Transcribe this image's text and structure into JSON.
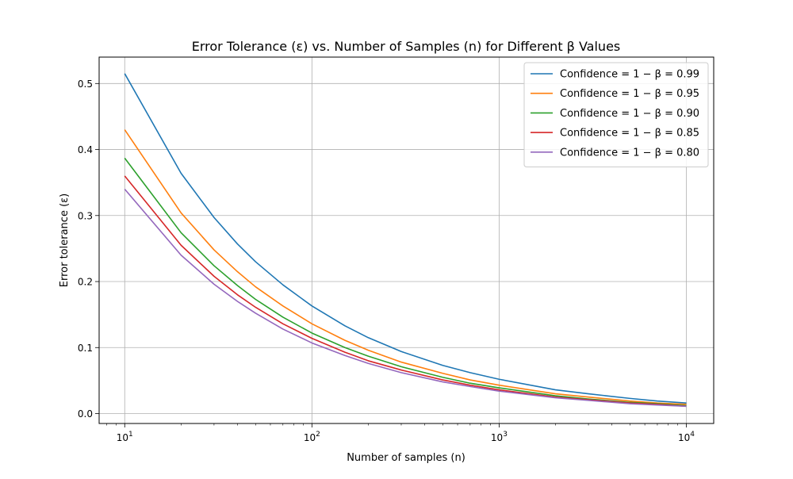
{
  "chart_data": {
    "type": "line",
    "title": "Error Tolerance (ε) vs. Number of Samples (n) for Different β Values",
    "xlabel": "Number of samples (n)",
    "ylabel": "Error tolerance (ε)",
    "x_scale": "log",
    "xlim": [
      7.3,
      14000
    ],
    "ylim": [
      -0.015,
      0.54
    ],
    "grid": true,
    "legend_position": "top-right",
    "x_ticks": [
      {
        "value": 10,
        "base": "10",
        "exp": "1"
      },
      {
        "value": 100,
        "base": "10",
        "exp": "2"
      },
      {
        "value": 1000,
        "base": "10",
        "exp": "3"
      },
      {
        "value": 10000,
        "base": "10",
        "exp": "4"
      }
    ],
    "y_ticks": [
      {
        "value": 0.0,
        "label": "0.0"
      },
      {
        "value": 0.1,
        "label": "0.1"
      },
      {
        "value": 0.2,
        "label": "0.2"
      },
      {
        "value": 0.3,
        "label": "0.3"
      },
      {
        "value": 0.4,
        "label": "0.4"
      },
      {
        "value": 0.5,
        "label": "0.5"
      }
    ],
    "x": [
      10,
      20,
      30,
      40,
      50,
      70,
      100,
      150,
      200,
      300,
      500,
      700,
      1000,
      2000,
      3000,
      5000,
      7000,
      10000
    ],
    "series": [
      {
        "name": "Confidence = 1 − β = 0.99",
        "color": "#1f77b4",
        "values": [
          0.515,
          0.364,
          0.297,
          0.257,
          0.23,
          0.195,
          0.163,
          0.133,
          0.115,
          0.094,
          0.073,
          0.062,
          0.052,
          0.036,
          0.03,
          0.023,
          0.019,
          0.016
        ]
      },
      {
        "name": "Confidence = 1 − β = 0.95",
        "color": "#ff7f0e",
        "values": [
          0.43,
          0.304,
          0.248,
          0.215,
          0.192,
          0.163,
          0.136,
          0.111,
          0.096,
          0.078,
          0.061,
          0.051,
          0.043,
          0.03,
          0.025,
          0.019,
          0.016,
          0.014
        ]
      },
      {
        "name": "Confidence = 1 − β = 0.90",
        "color": "#2ca02c",
        "values": [
          0.387,
          0.274,
          0.224,
          0.194,
          0.173,
          0.146,
          0.122,
          0.1,
          0.087,
          0.071,
          0.055,
          0.046,
          0.039,
          0.027,
          0.022,
          0.017,
          0.015,
          0.012
        ]
      },
      {
        "name": "Confidence = 1 − β = 0.85",
        "color": "#d62728",
        "values": [
          0.36,
          0.255,
          0.208,
          0.18,
          0.161,
          0.136,
          0.114,
          0.093,
          0.08,
          0.066,
          0.051,
          0.043,
          0.036,
          0.025,
          0.021,
          0.016,
          0.014,
          0.011
        ]
      },
      {
        "name": "Confidence = 1 − β = 0.80",
        "color": "#9467bd",
        "values": [
          0.34,
          0.24,
          0.196,
          0.17,
          0.152,
          0.128,
          0.107,
          0.088,
          0.076,
          0.062,
          0.048,
          0.041,
          0.034,
          0.024,
          0.02,
          0.015,
          0.013,
          0.011
        ]
      }
    ]
  }
}
